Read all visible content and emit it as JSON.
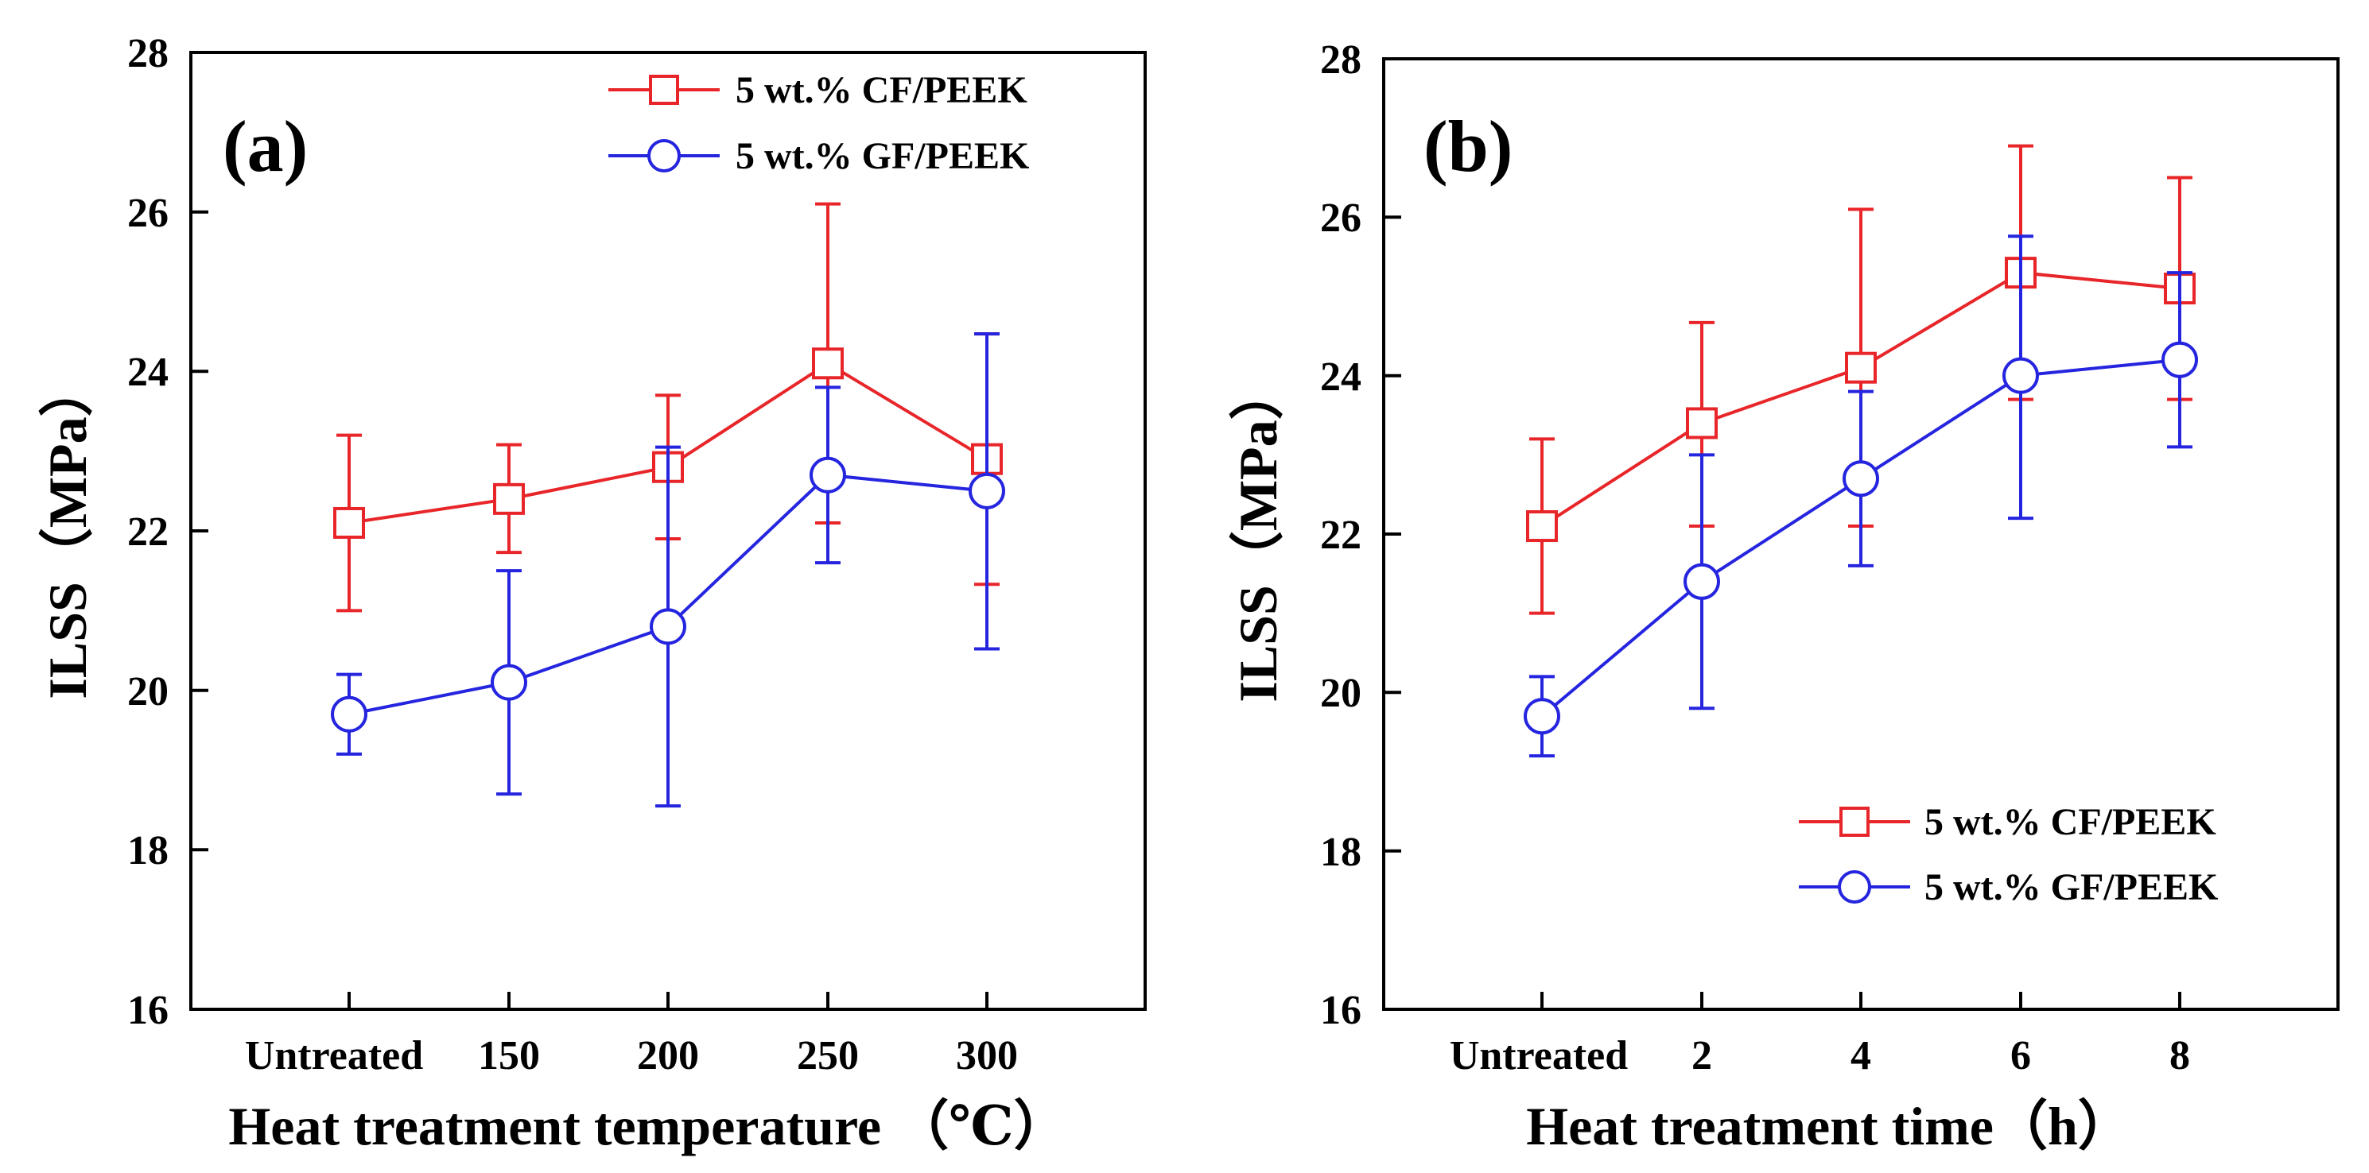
{
  "chart_data": [
    {
      "type": "line",
      "panel_label": "(a)",
      "categories": [
        "Untreated",
        "150",
        "200",
        "250",
        "300"
      ],
      "xlabel": "Heat treatment temperature （℃）",
      "ylabel": "ILSS（MPa）",
      "ylim": [
        16,
        28
      ],
      "yticks": [
        "16",
        "18",
        "20",
        "22",
        "24",
        "26",
        "28"
      ],
      "legend_position": "top-right",
      "series": [
        {
          "name": "5 wt.% CF/PEEK",
          "color": "#e8262a",
          "marker": "square",
          "values": [
            22.1,
            22.4,
            22.8,
            24.1,
            22.9
          ],
          "err_low": [
            21.0,
            21.73,
            21.9,
            22.1,
            21.33
          ],
          "err_high": [
            23.2,
            23.08,
            23.7,
            26.1,
            24.47
          ]
        },
        {
          "name": "5 wt.% GF/PEEK",
          "color": "#2525e0",
          "marker": "circle",
          "values": [
            19.7,
            20.1,
            20.8,
            22.7,
            22.5
          ],
          "err_low": [
            19.2,
            18.7,
            18.55,
            21.6,
            20.52
          ],
          "err_high": [
            20.2,
            21.5,
            23.05,
            23.8,
            24.47
          ]
        }
      ]
    },
    {
      "type": "line",
      "panel_label": "(b)",
      "categories": [
        "Untreated",
        "2",
        "4",
        "6",
        "8"
      ],
      "xlabel": "Heat treatment time（h）",
      "ylabel": "ILSS（MPa）",
      "ylim": [
        16,
        28
      ],
      "yticks": [
        "16",
        "18",
        "20",
        "22",
        "24",
        "26",
        "28"
      ],
      "legend_position": "bottom-right",
      "series": [
        {
          "name": "5 wt.% CF/PEEK",
          "color": "#e8262a",
          "marker": "square",
          "values": [
            22.1,
            23.4,
            24.1,
            25.3,
            25.1
          ],
          "err_low": [
            21.0,
            22.1,
            22.1,
            23.7,
            23.7
          ],
          "err_high": [
            23.2,
            24.67,
            26.1,
            26.9,
            26.5
          ]
        },
        {
          "name": "5 wt.% GF/PEEK",
          "color": "#2525e0",
          "marker": "circle",
          "values": [
            19.7,
            21.4,
            22.7,
            24.0,
            24.2
          ],
          "err_low": [
            19.2,
            19.8,
            21.6,
            22.2,
            23.1
          ],
          "err_high": [
            20.2,
            23.0,
            23.8,
            25.76,
            25.3
          ]
        }
      ]
    }
  ]
}
